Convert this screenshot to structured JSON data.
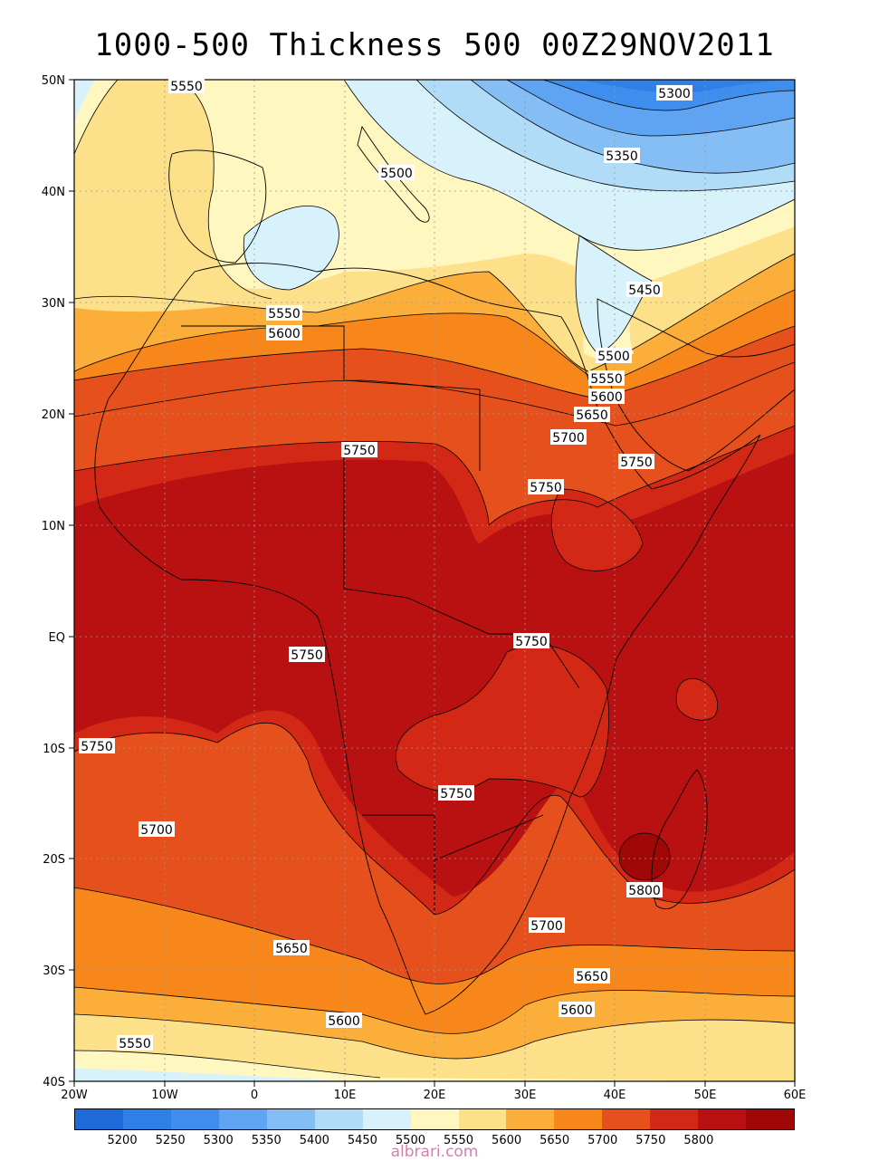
{
  "title": "1000-500 Thickness 500 00Z29NOV2011",
  "axes": {
    "lat_labels": [
      "50N",
      "40N",
      "30N",
      "20N",
      "10N",
      "EQ",
      "10S",
      "20S",
      "30S",
      "40S"
    ],
    "lon_labels": [
      "20W",
      "10W",
      "0",
      "10E",
      "20E",
      "30E",
      "40E",
      "50E",
      "60E"
    ],
    "lat_range": [
      -40,
      50
    ],
    "lon_range": [
      -20,
      60
    ],
    "grid": "dotted"
  },
  "colorbar": {
    "colors": [
      "#1e6ad8",
      "#2f7fe6",
      "#3f8eed",
      "#5ea4f2",
      "#85bdf5",
      "#b0dcf7",
      "#d8f2fb",
      "#fff6c0",
      "#fde08a",
      "#fbae3a",
      "#f7871a",
      "#e6501c",
      "#d42816",
      "#b91111",
      "#a00808"
    ],
    "labels": [
      "5200",
      "5250",
      "5300",
      "5350",
      "5400",
      "5450",
      "5500",
      "5550",
      "5600",
      "5650",
      "5700",
      "5750",
      "5800"
    ]
  },
  "contour_labels": [
    {
      "text": "5550"
    },
    {
      "text": "5300"
    },
    {
      "text": "5500"
    },
    {
      "text": "5350"
    },
    {
      "text": "5450"
    },
    {
      "text": "5550"
    },
    {
      "text": "5600"
    },
    {
      "text": "5500"
    },
    {
      "text": "5550"
    },
    {
      "text": "5600"
    },
    {
      "text": "5650"
    },
    {
      "text": "5700"
    },
    {
      "text": "5750"
    },
    {
      "text": "5750"
    },
    {
      "text": "5750"
    },
    {
      "text": "5750"
    },
    {
      "text": "5750"
    },
    {
      "text": "5750"
    },
    {
      "text": "5700"
    },
    {
      "text": "5750"
    },
    {
      "text": "5800"
    },
    {
      "text": "5700"
    },
    {
      "text": "5650"
    },
    {
      "text": "5650"
    },
    {
      "text": "5600"
    },
    {
      "text": "5600"
    },
    {
      "text": "5550"
    }
  ],
  "watermark": "albrari.com"
}
